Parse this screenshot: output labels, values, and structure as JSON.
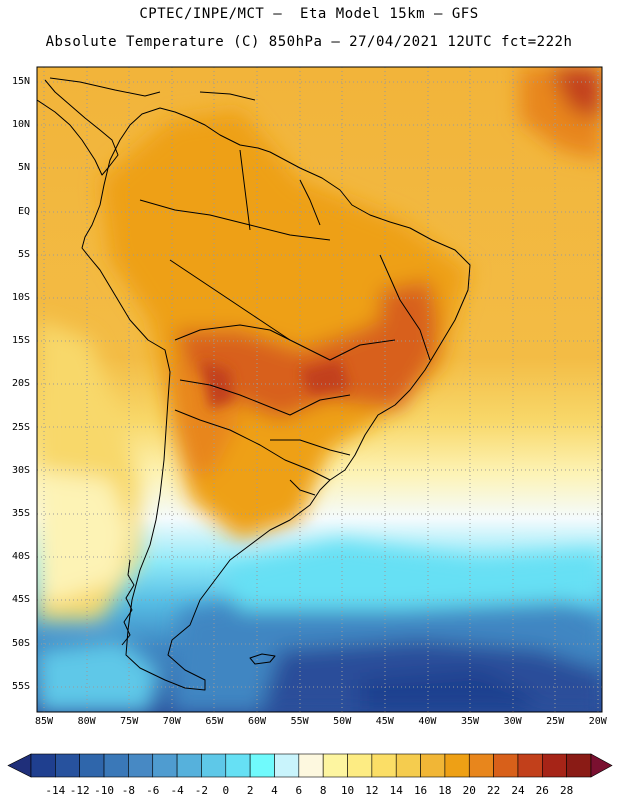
{
  "header": {
    "line1": "CPTEC/INPE/MCT –  Eta Model 15km – GFS",
    "line2": "Absolute Temperature (C) 850hPa – 27/04/2021 12UTC fct=222h"
  },
  "axes": {
    "lat_labels": [
      "15N",
      "10N",
      "5N",
      "EQ",
      "5S",
      "10S",
      "15S",
      "20S",
      "25S",
      "30S",
      "35S",
      "40S",
      "45S",
      "50S",
      "55S"
    ],
    "lon_labels": [
      "85W",
      "80W",
      "75W",
      "70W",
      "65W",
      "60W",
      "55W",
      "50W",
      "45W",
      "40W",
      "35W",
      "30W",
      "25W",
      "20W"
    ]
  },
  "colorbar": {
    "labels": [
      "-14",
      "-12",
      "-10",
      "-8",
      "-6",
      "-4",
      "-2",
      "0",
      "2",
      "4",
      "6",
      "8",
      "10",
      "12",
      "14",
      "16",
      "18",
      "20",
      "22",
      "24",
      "26",
      "28"
    ],
    "colors": [
      "#1f3f8f",
      "#27529e",
      "#2f66ab",
      "#3a78b8",
      "#4789c4",
      "#4f9cd0",
      "#56b1dc",
      "#5ec8e8",
      "#66e0f4",
      "#70fafc",
      "#c9f4fc",
      "#fdf8df",
      "#fdf5a0",
      "#fdec83",
      "#fbde66",
      "#f5cc4e",
      "#f1b636",
      "#eea015",
      "#e8861c",
      "#d8601a",
      "#c2401b",
      "#a62417",
      "#8a1b15"
    ],
    "under_color": "#1f2f7a",
    "over_color": "#7a1030"
  }
}
